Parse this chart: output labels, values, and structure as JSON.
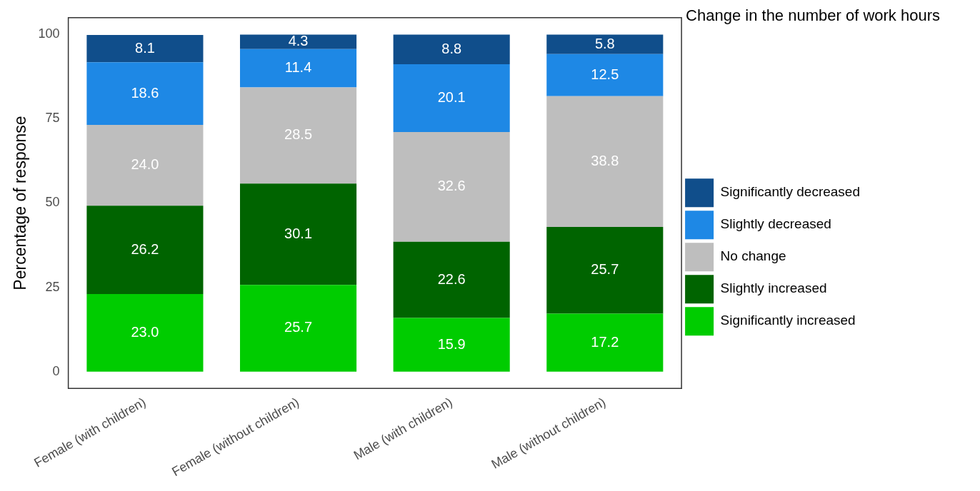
{
  "chart_data": {
    "type": "bar",
    "stacked": true,
    "ylabel": "Percentage of response",
    "legend_title": "Change in the number of work hours",
    "legend": "right",
    "categories": [
      "Female (with children)",
      "Female (without children)",
      "Male (with children)",
      "Male (without children)"
    ],
    "ylim": [
      -5,
      105
    ],
    "yticks": [
      0,
      25,
      50,
      75,
      100
    ],
    "series": [
      {
        "name": "Significantly increased",
        "color": "#00cc00",
        "values": [
          23.0,
          25.7,
          15.9,
          17.2
        ],
        "value_labels": [
          "23.0",
          "25.7",
          "15.9",
          "17.2"
        ]
      },
      {
        "name": "Slightly increased",
        "color": "#006400",
        "values": [
          26.2,
          30.1,
          22.6,
          25.7
        ],
        "value_labels": [
          "26.2",
          "30.1",
          "22.6",
          "25.7"
        ]
      },
      {
        "name": "No change",
        "color": "#bebebe",
        "values": [
          24.0,
          28.5,
          32.6,
          38.8
        ],
        "value_labels": [
          "24.0",
          "28.5",
          "32.6",
          "38.8"
        ]
      },
      {
        "name": "Slightly decreased",
        "color": "#1e88e5",
        "values": [
          18.6,
          11.4,
          20.1,
          12.5
        ],
        "value_labels": [
          "18.6",
          "11.4",
          "20.1",
          "12.5"
        ]
      },
      {
        "name": "Significantly decreased",
        "color": "#104e8b",
        "values": [
          8.1,
          4.3,
          8.8,
          5.8
        ],
        "value_labels": [
          "8.1",
          "4.3",
          "8.8",
          "5.8"
        ]
      }
    ]
  }
}
